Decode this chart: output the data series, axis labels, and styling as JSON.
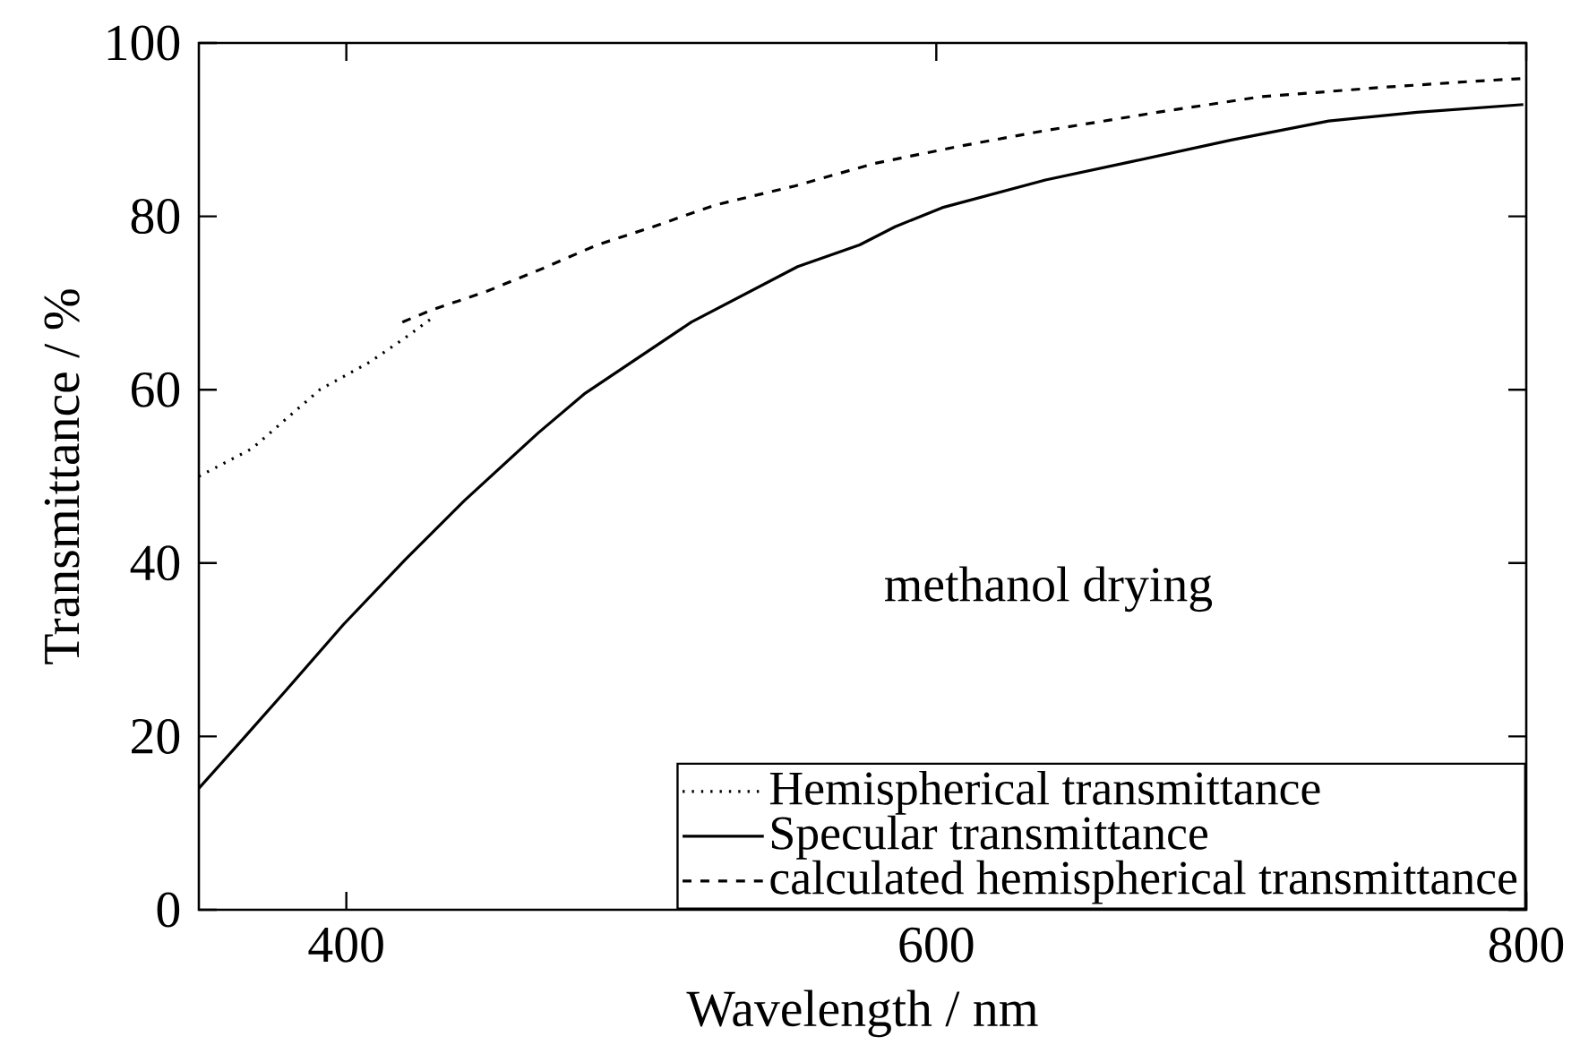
{
  "chart_data": {
    "type": "line",
    "xlabel": "Wavelength / nm",
    "ylabel": "Transmittance / %",
    "xlim": [
      350,
      800
    ],
    "ylim": [
      0,
      100
    ],
    "xticks": [
      400,
      600,
      800
    ],
    "yticks": [
      0,
      20,
      40,
      60,
      80,
      100
    ],
    "legend": "bottom right",
    "grid": false,
    "annotations": [
      "methanol drying"
    ],
    "series": [
      {
        "name": "Hemispherical transmittance",
        "color": "#000000",
        "line_style": "dotted",
        "x": [
          350,
          368,
          391,
          408,
          420,
          430
        ],
        "values": [
          50.0,
          53.2,
          60.0,
          63.2,
          66.0,
          68.5
        ]
      },
      {
        "name": "Specular transmittance",
        "color": "#000000",
        "line_style": "solid",
        "x": [
          350,
          366,
          379,
          399,
          420,
          440,
          465,
          481,
          517,
          553,
          574,
          586,
          602,
          637,
          666,
          700,
          733,
          763,
          799
        ],
        "values": [
          14.0,
          20.1,
          25.1,
          32.9,
          40.4,
          47.2,
          55.0,
          59.6,
          67.8,
          74.2,
          76.7,
          78.8,
          81.0,
          84.2,
          86.3,
          88.8,
          91.0,
          92.0,
          92.9
        ]
      },
      {
        "name": "calculated hemispherical transmittance",
        "color": "#000000",
        "line_style": "dashed",
        "x": [
          419,
          429,
          448,
          466,
          485,
          504,
          525,
          552,
          579,
          608,
          637,
          675,
          710,
          752,
          783,
          799
        ],
        "values": [
          67.8,
          69.2,
          71.4,
          73.9,
          76.7,
          78.8,
          81.3,
          83.5,
          86.1,
          88.1,
          89.9,
          92.0,
          93.8,
          94.9,
          95.6,
          95.9
        ]
      }
    ]
  }
}
